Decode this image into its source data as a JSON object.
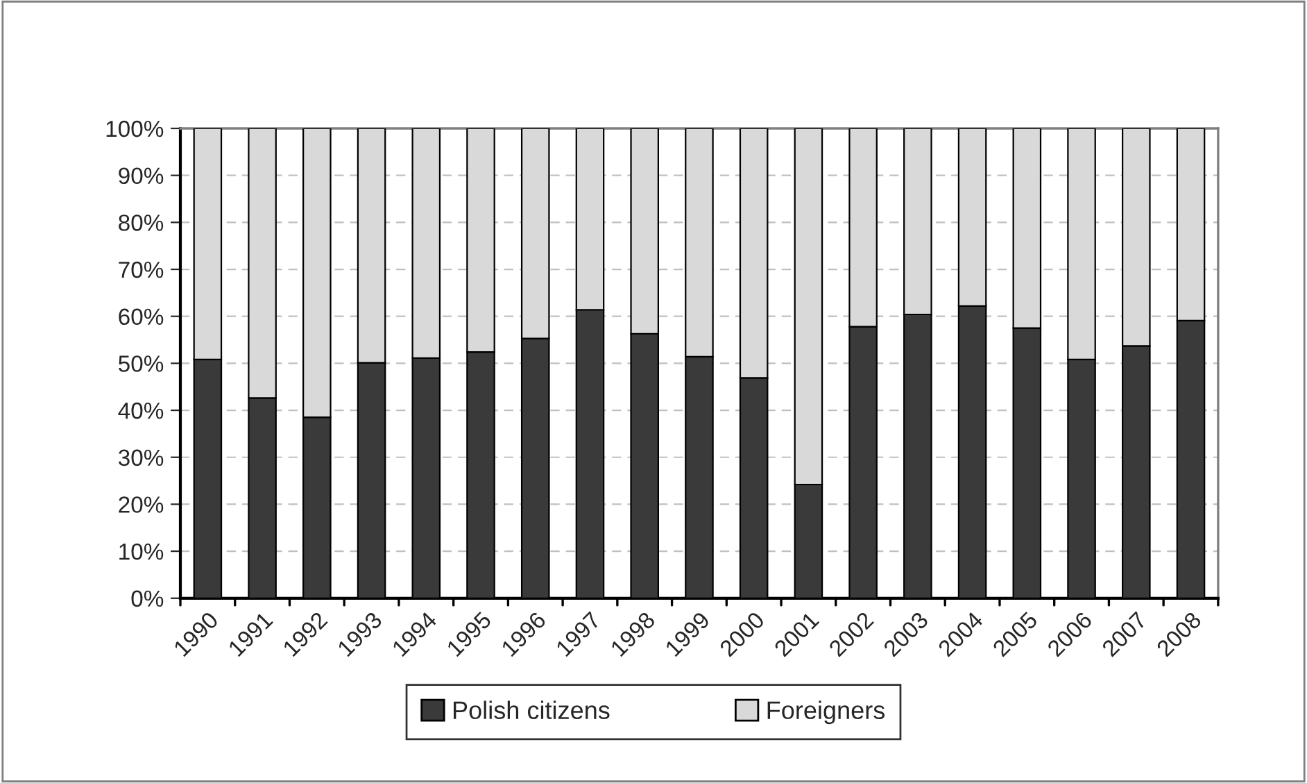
{
  "chart_data": {
    "type": "bar",
    "stacked": true,
    "categories": [
      "1990",
      "1991",
      "1992",
      "1993",
      "1994",
      "1995",
      "1996",
      "1997",
      "1998",
      "1999",
      "2000",
      "2001",
      "2002",
      "2003",
      "2004",
      "2005",
      "2006",
      "2007",
      "2008"
    ],
    "series": [
      {
        "name": "Polish citizens",
        "color": "#3a3a3a",
        "values": [
          50.8,
          42.6,
          38.5,
          50.1,
          51.1,
          52.4,
          55.3,
          61.4,
          56.3,
          51.4,
          46.9,
          24.2,
          57.8,
          60.4,
          62.2,
          57.5,
          50.8,
          53.7,
          59.1
        ]
      },
      {
        "name": "Foreigners",
        "color": "#d9d9d9",
        "values": [
          49.2,
          57.4,
          61.5,
          49.9,
          48.9,
          47.6,
          44.7,
          38.6,
          43.7,
          48.6,
          53.1,
          75.8,
          42.2,
          39.6,
          37.8,
          42.5,
          49.2,
          46.3,
          40.9
        ]
      }
    ],
    "ylim": [
      0,
      100
    ],
    "yticks": [
      {
        "value": 0,
        "label": "0%"
      },
      {
        "value": 10,
        "label": "10%"
      },
      {
        "value": 20,
        "label": "20%"
      },
      {
        "value": 30,
        "label": "30%"
      },
      {
        "value": 40,
        "label": "40%"
      },
      {
        "value": 50,
        "label": "50%"
      },
      {
        "value": 60,
        "label": "60%"
      },
      {
        "value": 70,
        "label": "70%"
      },
      {
        "value": 80,
        "label": "80%"
      },
      {
        "value": 90,
        "label": "90%"
      },
      {
        "value": 100,
        "label": "100%"
      }
    ],
    "grid": "y",
    "legend": "bottom"
  }
}
